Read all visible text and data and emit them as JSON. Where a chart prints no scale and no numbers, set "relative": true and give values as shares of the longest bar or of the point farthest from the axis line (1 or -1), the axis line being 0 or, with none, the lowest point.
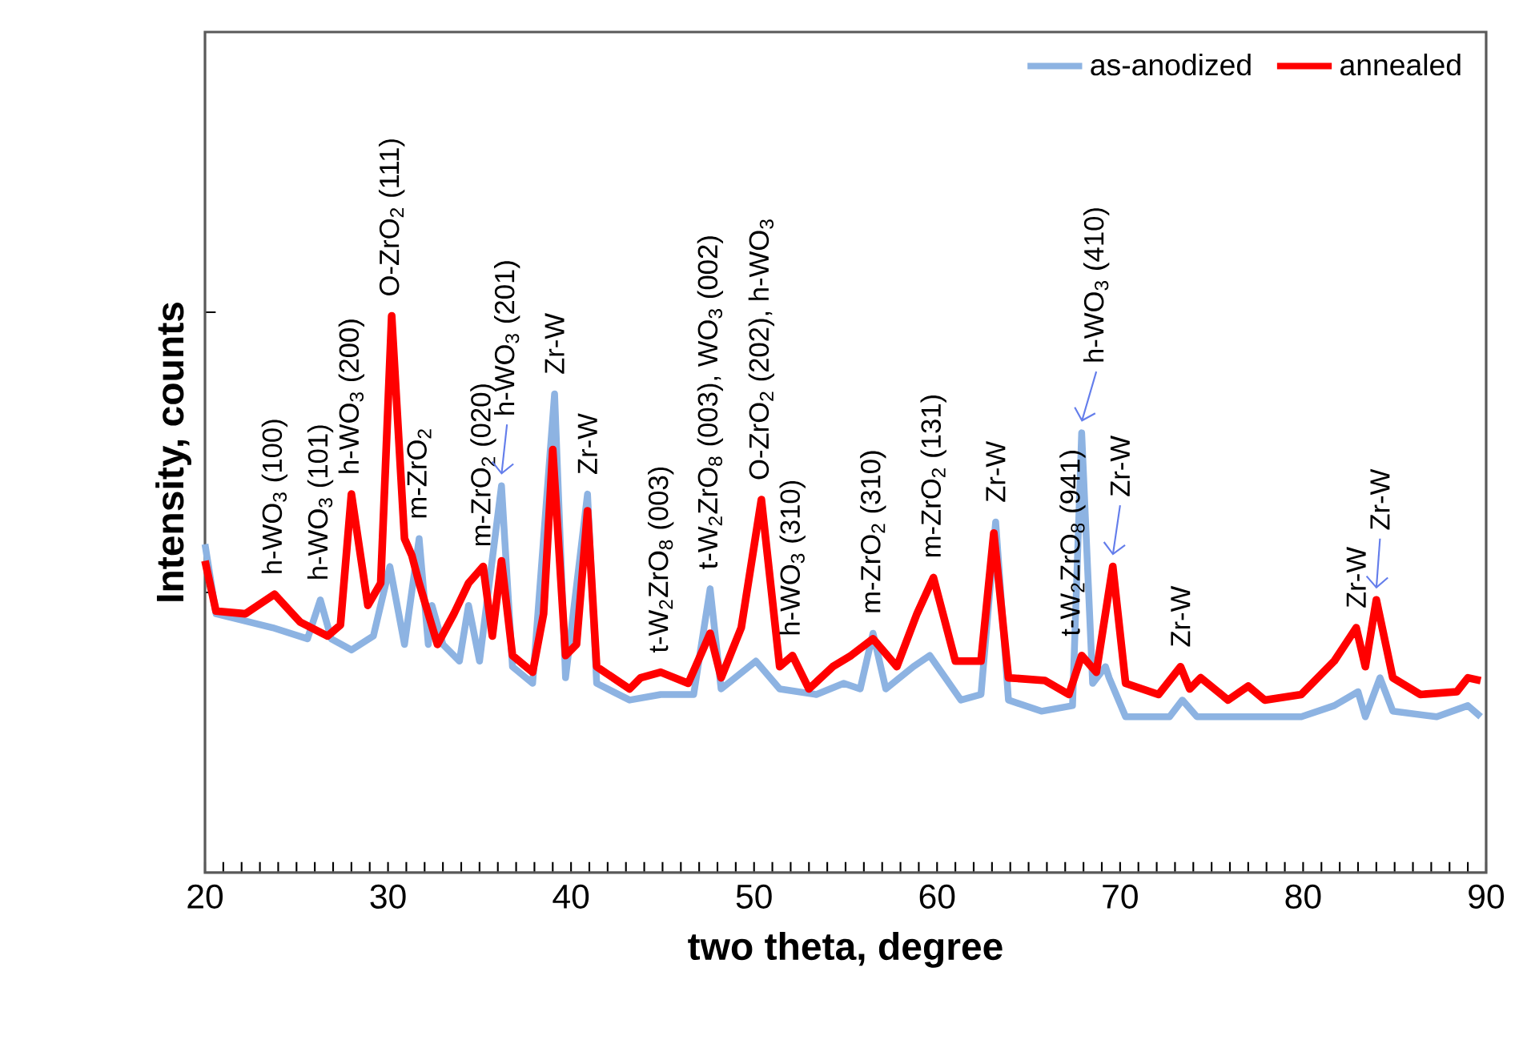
{
  "chart_data": {
    "type": "line",
    "relative": true,
    "xlabel": "two theta, degree",
    "ylabel": "Intensity, counts",
    "xlim": [
      20,
      90
    ],
    "xticks": [
      20,
      30,
      40,
      50,
      60,
      70,
      80,
      90
    ],
    "grid": false,
    "legend": "top right",
    "marker": "none",
    "line_style": "solid",
    "series": [
      {
        "name": "as-anodized",
        "color": "#8db3e2",
        "x": [
          20,
          20.6,
          23.7,
          25.6,
          26.3,
          26.9,
          28.0,
          29.2,
          30.1,
          30.9,
          31.7,
          32.2,
          32.4,
          33.0,
          33.9,
          34.4,
          35.0,
          36.2,
          36.8,
          37.9,
          39.1,
          39.7,
          40.9,
          41.4,
          43.2,
          44.9,
          46.7,
          47.6,
          48.2,
          50.1,
          51.4,
          53.4,
          54.9,
          55.8,
          56.5,
          57.2,
          58.7,
          59.6,
          61.3,
          62.4,
          63.2,
          63.9,
          65.7,
          67.4,
          67.9,
          68.5,
          69.2,
          69.4,
          70.3,
          72.7,
          73.4,
          74.2,
          77.0,
          79.9,
          81.7,
          83.0,
          83.4,
          84.2,
          84.9,
          87.3,
          89.0,
          89.7
        ],
        "values": [
          0.59,
          0.465,
          0.44,
          0.42,
          0.49,
          0.42,
          0.4,
          0.425,
          0.55,
          0.41,
          0.6,
          0.41,
          0.48,
          0.41,
          0.38,
          0.48,
          0.38,
          0.695,
          0.37,
          0.34,
          0.86,
          0.35,
          0.68,
          0.34,
          0.31,
          0.32,
          0.32,
          0.51,
          0.33,
          0.38,
          0.33,
          0.32,
          0.34,
          0.33,
          0.43,
          0.33,
          0.37,
          0.39,
          0.31,
          0.32,
          0.63,
          0.31,
          0.29,
          0.3,
          0.79,
          0.34,
          0.37,
          0.35,
          0.28,
          0.28,
          0.31,
          0.28,
          0.28,
          0.28,
          0.3,
          0.325,
          0.28,
          0.35,
          0.29,
          0.28,
          0.3,
          0.28
        ]
      },
      {
        "name": "annealed",
        "color": "#ff0000",
        "x": [
          20,
          20.6,
          22.2,
          23.8,
          25.2,
          26.7,
          27.4,
          28.0,
          28.9,
          29.6,
          30.2,
          30.9,
          31.3,
          31.7,
          32.7,
          33.6,
          34.4,
          35.2,
          35.7,
          36.2,
          36.8,
          37.9,
          38.5,
          39.0,
          39.7,
          40.3,
          40.9,
          41.4,
          43.2,
          43.8,
          44.9,
          46.4,
          47.6,
          48.2,
          49.3,
          50.4,
          51.4,
          52.1,
          53.0,
          54.3,
          55.3,
          56.5,
          57.8,
          58.9,
          59.8,
          61.0,
          62.4,
          63.1,
          63.9,
          65.9,
          67.2,
          67.9,
          68.7,
          69.6,
          70.3,
          72.1,
          73.3,
          73.8,
          74.4,
          75.9,
          77.0,
          77.9,
          79.9,
          81.7,
          82.9,
          83.4,
          84.0,
          84.9,
          86.4,
          88.4,
          89.0,
          89.7
        ],
        "values": [
          0.56,
          0.47,
          0.465,
          0.5,
          0.45,
          0.425,
          0.445,
          0.68,
          0.48,
          0.52,
          1.0,
          0.6,
          0.57,
          0.52,
          0.41,
          0.465,
          0.52,
          0.55,
          0.425,
          0.56,
          0.39,
          0.36,
          0.465,
          0.76,
          0.39,
          0.41,
          0.65,
          0.37,
          0.33,
          0.35,
          0.36,
          0.34,
          0.43,
          0.35,
          0.44,
          0.67,
          0.37,
          0.39,
          0.33,
          0.37,
          0.39,
          0.42,
          0.37,
          0.465,
          0.53,
          0.38,
          0.38,
          0.61,
          0.35,
          0.345,
          0.32,
          0.39,
          0.36,
          0.55,
          0.34,
          0.32,
          0.37,
          0.33,
          0.35,
          0.31,
          0.335,
          0.31,
          0.32,
          0.38,
          0.44,
          0.37,
          0.49,
          0.35,
          0.32,
          0.325,
          0.35,
          0.345
        ]
      }
    ],
    "annotations": [
      {
        "text": "h-WO$_{3}$ (100)",
        "x": 23.8,
        "y": 0.5
      },
      {
        "text": "h-WO$_{3}$ (101)",
        "x": 26.3,
        "y": 0.49
      },
      {
        "text": "h-WO$_{3}$ (200)",
        "x": 28.0,
        "y": 0.68
      },
      {
        "text": "O-ZrO$_{2}$ (111)",
        "x": 30.2,
        "y": 1.0
      },
      {
        "text": "m-ZrO$_{2}$",
        "x": 31.7,
        "y": 0.6
      },
      {
        "text": "m-ZrO$_{2}$ (020)",
        "x": 35.2,
        "y": 0.55
      },
      {
        "text": "h-WO$_{3}$ (201)",
        "x": 36.2,
        "y": 0.695
      },
      {
        "text": "Zr-W",
        "x": 39.1,
        "y": 0.86
      },
      {
        "text": "Zr-W",
        "x": 40.9,
        "y": 0.68
      },
      {
        "text": "t-W$_{2}$ZrO$_{8}$ (003)",
        "x": 44.9,
        "y": 0.36
      },
      {
        "text": "t-W$_{2}$ZrO$_{8}$ (003), WO$_{3}$ (002)",
        "x": 47.6,
        "y": 0.51
      },
      {
        "text": "O-ZrO$_{2}$ (202), h-WO$_{3}$",
        "x": 50.4,
        "y": 0.67
      },
      {
        "text": "h-WO$_{3}$ (310)",
        "x": 52.1,
        "y": 0.39
      },
      {
        "text": "m-ZrO$_{2}$ (310)",
        "x": 56.5,
        "y": 0.43
      },
      {
        "text": "m-ZrO$_{2}$ (131)",
        "x": 59.8,
        "y": 0.53
      },
      {
        "text": "Zr-W",
        "x": 63.2,
        "y": 0.63
      },
      {
        "text": "t-W$_{2}$ZrO$_{8}$ (941)",
        "x": 67.4,
        "y": 0.39
      },
      {
        "text": "h-WO$_{3}$ (410)",
        "x": 67.9,
        "y": 0.79
      },
      {
        "text": "Zr-W",
        "x": 69.6,
        "y": 0.55
      },
      {
        "text": "Zr-W",
        "x": 73.3,
        "y": 0.37
      },
      {
        "text": "Zr-W",
        "x": 82.9,
        "y": 0.44
      },
      {
        "text": "Zr-W",
        "x": 84.0,
        "y": 0.49
      }
    ]
  }
}
